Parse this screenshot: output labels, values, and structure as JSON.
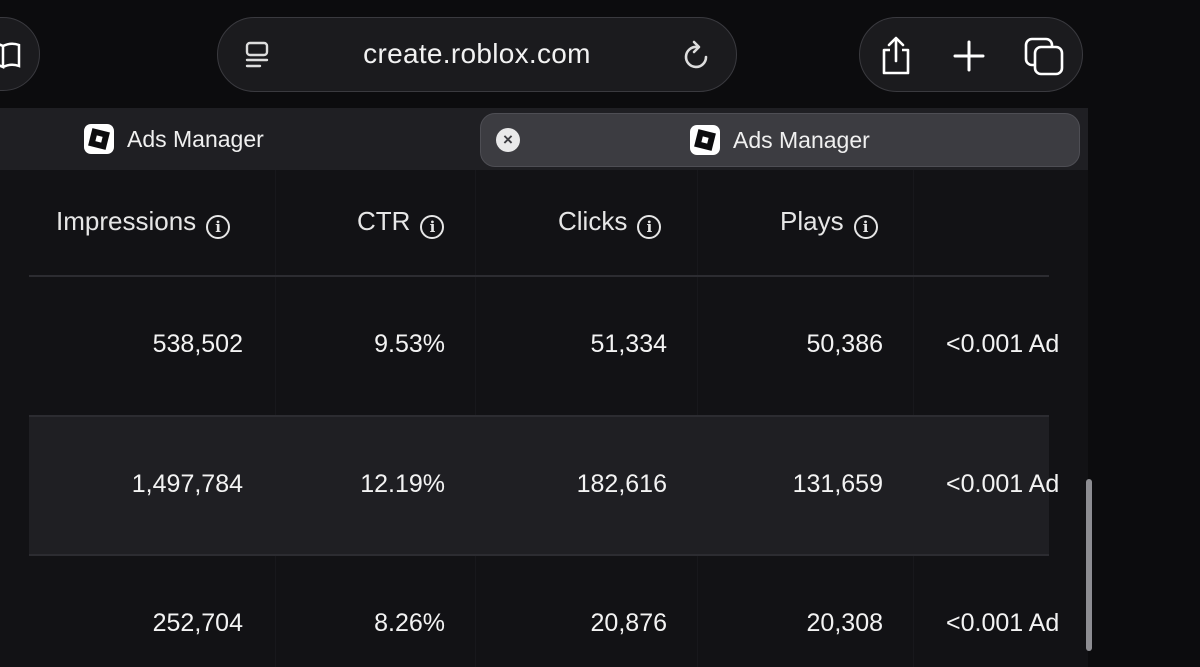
{
  "browser": {
    "url": "create.roblox.com",
    "icons": {
      "bookmarks": "book-icon",
      "reader": "reader-mode-icon",
      "reload": "reload-icon",
      "share": "share-icon",
      "new_tab": "plus-icon",
      "tabs": "tab-overview-icon"
    }
  },
  "tabs": [
    {
      "title": "Ads Manager",
      "active": false
    },
    {
      "title": "Ads Manager",
      "active": true,
      "close_label": "×"
    }
  ],
  "table": {
    "columns": [
      "Impressions",
      "CTR",
      "Clicks",
      "Plays",
      ""
    ],
    "info_glyph": "i",
    "rows": [
      {
        "impressions": "538,502",
        "ctr": "9.53%",
        "clicks": "51,334",
        "plays": "50,386",
        "extra": "<0.001 Ad"
      },
      {
        "impressions": "1,497,784",
        "ctr": "12.19%",
        "clicks": "182,616",
        "plays": "131,659",
        "extra": "<0.001 Ad"
      },
      {
        "impressions": "252,704",
        "ctr": "8.26%",
        "clicks": "20,876",
        "plays": "20,308",
        "extra": "<0.001 Ad"
      }
    ]
  },
  "colors": {
    "background": "#0c0c0e",
    "page": "#121215",
    "alt_row": "#1f1f23",
    "text": "#f3f3f3"
  }
}
